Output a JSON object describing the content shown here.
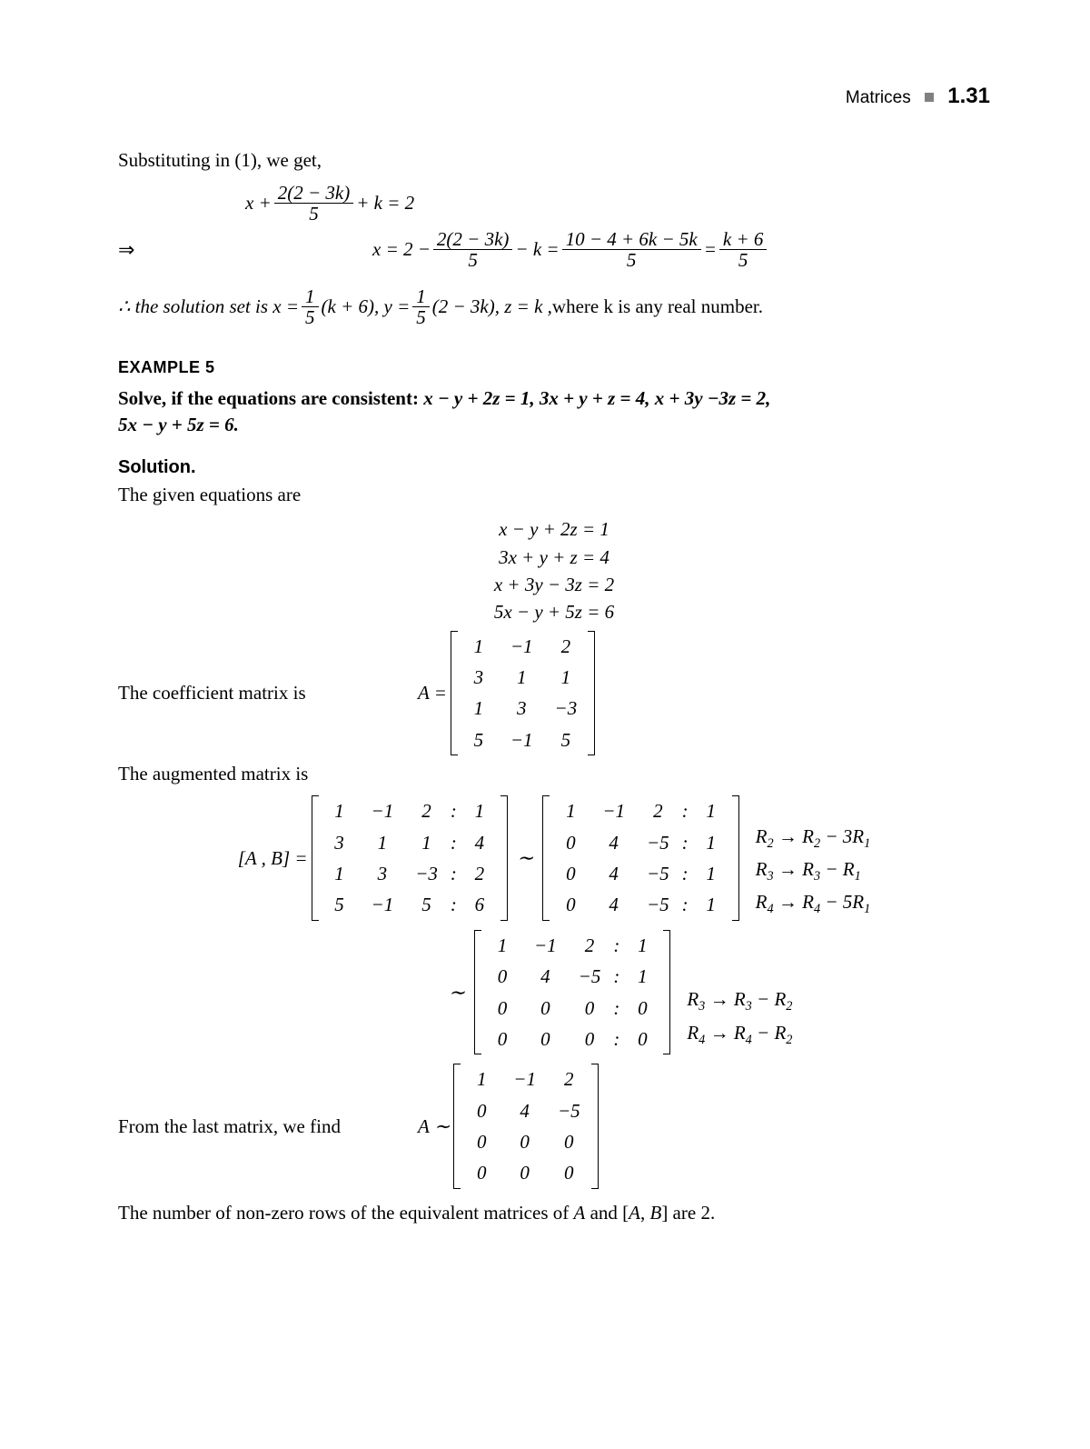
{
  "header": {
    "chapter": "Matrices",
    "page_number": "1.31"
  },
  "intro": {
    "substituting": "Substituting in (1), we get,",
    "eq1_lhs": "x +",
    "eq1_frac_num": "2(2 − 3k)",
    "eq1_frac_den": "5",
    "eq1_mid": "+ k = 2",
    "arrow": "⇒",
    "eq2_a": "x = 2 −",
    "eq2_f1_num": "2(2 − 3k)",
    "eq2_f1_den": "5",
    "eq2_b": "− k =",
    "eq2_f2_num": "10 − 4 + 6k − 5k",
    "eq2_f2_den": "5",
    "eq2_c": "=",
    "eq2_f3_num": "k + 6",
    "eq2_f3_den": "5",
    "sol_pre": "∴ the solution set is x =",
    "sol_f1_num": "1",
    "sol_f1_den": "5",
    "sol_mid1": "(k + 6), y =",
    "sol_f2_num": "1",
    "sol_f2_den": "5",
    "sol_mid2": "(2 − 3k), z = k ,",
    "sol_tail": " where k is any real number."
  },
  "example": {
    "heading": "EXAMPLE 5",
    "problem_a": "Solve, if the equations are consistent: ",
    "problem_b": "x − y + 2z = 1, 3x + y + z = 4, x + 3y −3z = 2,",
    "problem_c": "5x − y + 5z = 6."
  },
  "solution": {
    "heading": "Solution.",
    "given": "The given equations are",
    "eqs": [
      "x − y + 2z = 1",
      "3x + y + z = 4",
      "x + 3y − 3z = 2",
      "5x − y + 5z = 6"
    ],
    "coef_label": "The coefficient matrix is",
    "A_eq": "A =",
    "A": [
      [
        "1",
        "−1",
        "2"
      ],
      [
        "3",
        "1",
        "1"
      ],
      [
        "1",
        "3",
        "−3"
      ],
      [
        "5",
        "−1",
        "5"
      ]
    ],
    "aug_label": "The augmented matrix is",
    "AB_eq": "[A , B] =",
    "M1": [
      [
        "1",
        "−1",
        "2",
        ":",
        "1"
      ],
      [
        "3",
        "1",
        "1",
        ":",
        "4"
      ],
      [
        "1",
        "3",
        "−3",
        ":",
        "2"
      ],
      [
        "5",
        "−1",
        "5",
        ":",
        "6"
      ]
    ],
    "M2": [
      [
        "1",
        "−1",
        "2",
        ":",
        "1"
      ],
      [
        "0",
        "4",
        "−5",
        ":",
        "1"
      ],
      [
        "0",
        "4",
        "−5",
        ":",
        "1"
      ],
      [
        "0",
        "4",
        "−5",
        ":",
        "1"
      ]
    ],
    "ops1": {
      "a_pre": "R",
      "a_sub1": "2",
      "a_mid": " → R",
      "a_sub2": "2",
      "a_tail": " − 3R",
      "a_sub3": "1",
      "b_pre": "R",
      "b_sub1": "3",
      "b_mid": " → R",
      "b_sub2": "3",
      "b_tail": " − R",
      "b_sub3": "1",
      "c_pre": "R",
      "c_sub1": "4",
      "c_mid": " → R",
      "c_sub2": "4",
      "c_tail": " − 5R",
      "c_sub3": "1"
    },
    "M3": [
      [
        "1",
        "−1",
        "2",
        ":",
        "1"
      ],
      [
        "0",
        "4",
        "−5",
        ":",
        "1"
      ],
      [
        "0",
        "0",
        "0",
        ":",
        "0"
      ],
      [
        "0",
        "0",
        "0",
        ":",
        "0"
      ]
    ],
    "ops2": {
      "a_pre": "R",
      "a_sub1": "3",
      "a_mid": " → R",
      "a_sub2": "3",
      "a_tail": " − R",
      "a_sub3": "2",
      "b_pre": "R",
      "b_sub1": "4",
      "b_mid": " → R",
      "b_sub2": "4",
      "b_tail": " − R",
      "b_sub3": "2"
    },
    "from_last": "From the last matrix, we find",
    "A2_eq": "A  ∼",
    "A2": [
      [
        "1",
        "−1",
        "2"
      ],
      [
        "0",
        "4",
        "−5"
      ],
      [
        "0",
        "0",
        "0"
      ],
      [
        "0",
        "0",
        "0"
      ]
    ],
    "conclusion": "The number of non-zero rows of the equivalent matrices of A and [A, B] are 2."
  }
}
